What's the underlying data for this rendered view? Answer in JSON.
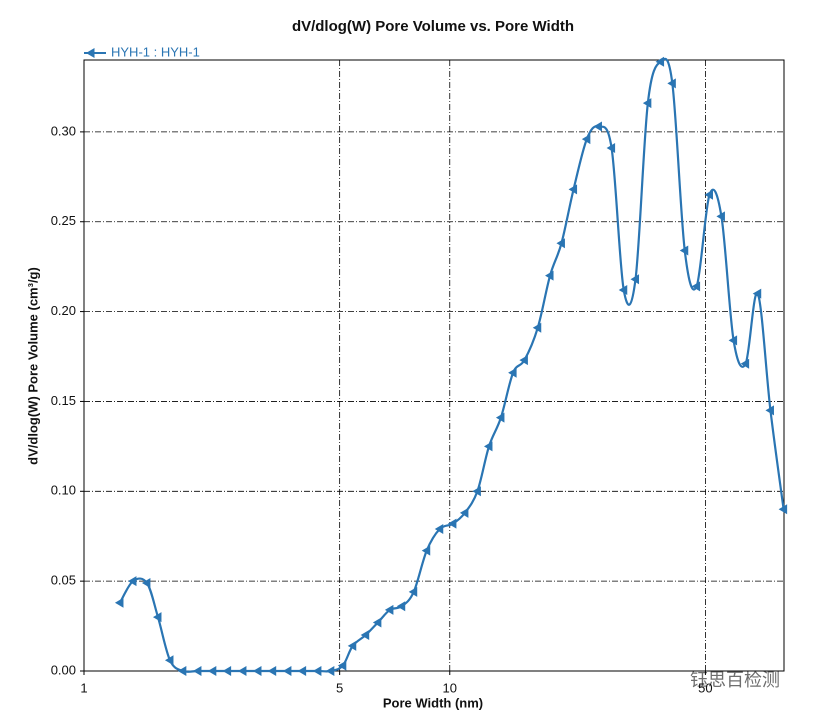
{
  "chart_data": {
    "type": "line",
    "title": "dV/dlog(W) Pore Volume vs. Pore Width",
    "x_label": "Pore Width (nm)",
    "y_label": "dV/dlog(W) Pore Volume (cm³/g)",
    "x_log": true,
    "grid": true,
    "legend": "top-left",
    "watermark": "钰思百检测",
    "xlim": [
      1,
      82
    ],
    "xticks": [
      1,
      5,
      10,
      50
    ],
    "ylim": [
      0,
      0.34
    ],
    "yticks": [
      {
        "value": 0,
        "label": "0.00"
      },
      {
        "value": 0.05,
        "label": "0.05"
      },
      {
        "value": 0.1,
        "label": "0.10"
      },
      {
        "value": 0.15,
        "label": "0.15"
      },
      {
        "value": 0.2,
        "label": "0.20"
      },
      {
        "value": 0.25,
        "label": "0.25"
      },
      {
        "value": 0.3,
        "label": "0.30"
      }
    ],
    "series": [
      {
        "name": "HYH-1 : HYH-1",
        "color": "#2a75b3",
        "x": [
          1.254,
          1.361,
          1.486,
          1.593,
          1.718,
          1.863,
          2.049,
          2.25,
          2.47,
          2.72,
          2.99,
          3.28,
          3.61,
          3.96,
          4.36,
          4.73,
          5.1,
          5.43,
          5.89,
          6.36,
          6.86,
          7.39,
          7.97,
          8.65,
          9.39,
          10.2,
          11.0,
          11.9,
          12.8,
          13.8,
          14.9,
          16.0,
          17.4,
          18.8,
          20.2,
          21.8,
          23.7,
          25.5,
          27.7,
          29.9,
          32.2,
          34.8,
          37.7,
          40.6,
          43.9,
          47.3,
          51.3,
          55.3,
          59.7,
          64.4,
          69.5,
          75.3,
          81.8
        ],
        "values": [
          0.038,
          0.05,
          0.049,
          0.03,
          0.006,
          0,
          0,
          0,
          0,
          0,
          0,
          0,
          0,
          0,
          0,
          0,
          0.003,
          0.014,
          0.02,
          0.027,
          0.034,
          0.036,
          0.044,
          0.067,
          0.079,
          0.082,
          0.088,
          0.1,
          0.125,
          0.141,
          0.166,
          0.173,
          0.191,
          0.22,
          0.238,
          0.268,
          0.296,
          0.303,
          0.291,
          0.212,
          0.218,
          0.316,
          0.339,
          0.327,
          0.234,
          0.214,
          0.265,
          0.253,
          0.184,
          0.171,
          0.21,
          0.145,
          0.09
        ]
      }
    ]
  }
}
